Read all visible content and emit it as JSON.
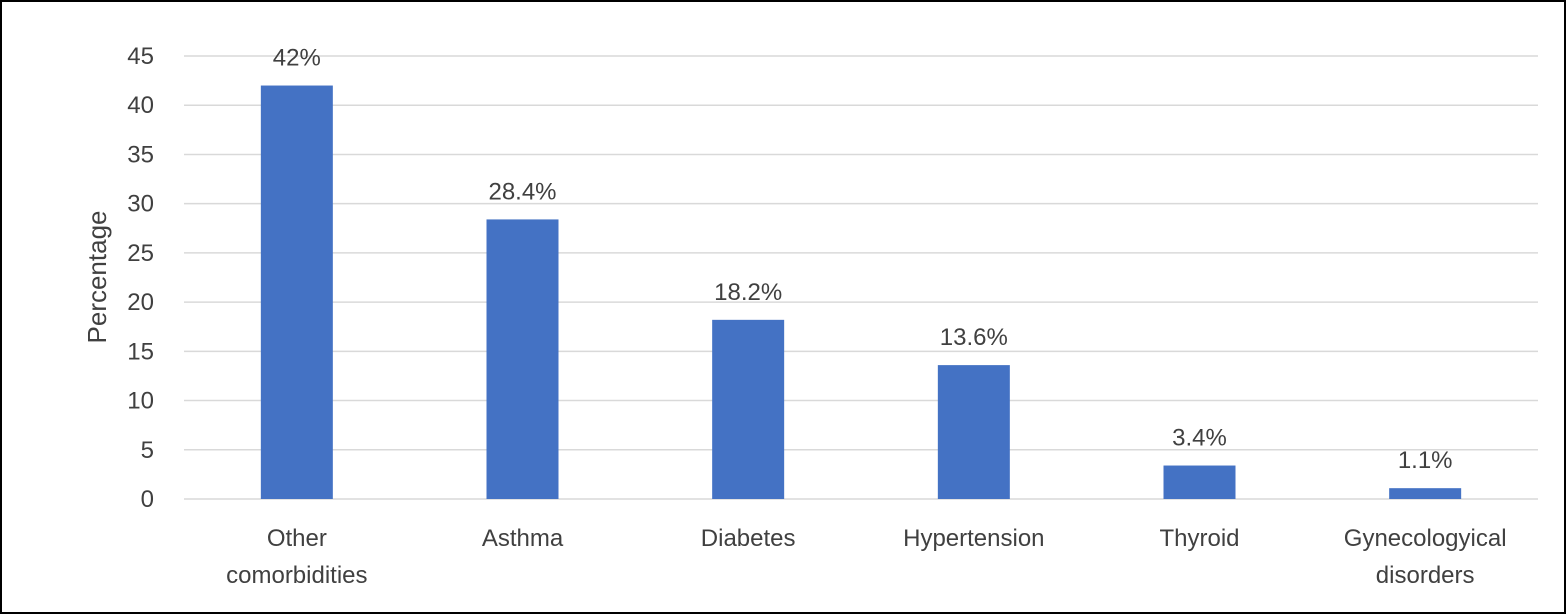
{
  "chart_data": {
    "type": "bar",
    "categories": [
      "Other comorbidities",
      "Asthma",
      "Diabetes",
      "Hypertension",
      "Thyroid",
      "Gynecologyical disorders"
    ],
    "category_lines": [
      [
        "Other",
        "comorbidities"
      ],
      [
        "Asthma"
      ],
      [
        "Diabetes"
      ],
      [
        "Hypertension"
      ],
      [
        "Thyroid"
      ],
      [
        "Gynecologyical",
        "disorders"
      ]
    ],
    "values": [
      42,
      28.4,
      18.2,
      13.6,
      3.4,
      1.1
    ],
    "data_labels": [
      "42%",
      "28.4%",
      "18.2%",
      "13.6%",
      "3.4%",
      "1.1%"
    ],
    "title": "",
    "xlabel": "",
    "ylabel": "Percentage",
    "ylim": [
      0,
      45
    ],
    "yticks": [
      0,
      5,
      10,
      15,
      20,
      25,
      30,
      35,
      40,
      45
    ],
    "grid": true,
    "legend": "none",
    "colors": {
      "bar": "#4472C4",
      "grid": "#D9D9D9",
      "text": "#404040",
      "border": "#000000"
    }
  }
}
